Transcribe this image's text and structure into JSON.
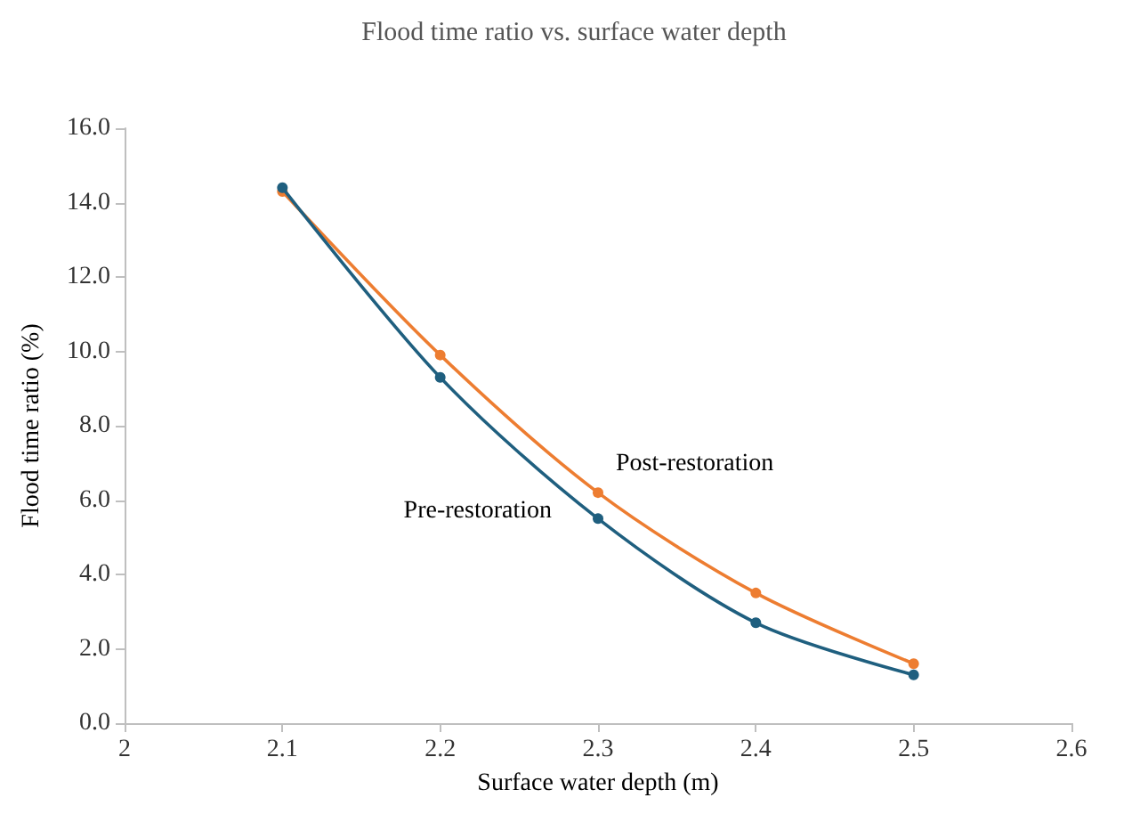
{
  "chart_data": {
    "type": "line",
    "title": "Flood time ratio vs. surface water depth",
    "xlabel": "Surface water depth (m)",
    "ylabel": "Flood time ratio (%)",
    "x": [
      2.1,
      2.2,
      2.3,
      2.4,
      2.5
    ],
    "series": [
      {
        "name": "Pre-restoration",
        "color": "#1f5f7f",
        "values": [
          14.4,
          9.3,
          5.5,
          2.7,
          1.3
        ]
      },
      {
        "name": "Post-restoration",
        "color": "#ed7d31",
        "values": [
          14.3,
          9.9,
          6.2,
          3.5,
          1.6
        ]
      }
    ],
    "xlim": [
      2,
      2.6
    ],
    "xticks": [
      2,
      2.1,
      2.2,
      2.3,
      2.4,
      2.5,
      2.6
    ],
    "ylim": [
      0,
      16
    ],
    "yticks": [
      {
        "value": 0,
        "label": "0.0"
      },
      {
        "value": 2,
        "label": "2.0"
      },
      {
        "value": 4,
        "label": "4.0"
      },
      {
        "value": 6,
        "label": "6.0"
      },
      {
        "value": 8,
        "label": "8.0"
      },
      {
        "value": 10,
        "label": "10.0"
      },
      {
        "value": 12,
        "label": "12.0"
      },
      {
        "value": 14,
        "label": "14.0"
      },
      {
        "value": 16,
        "label": "16.0"
      }
    ],
    "grid": false,
    "legend": false,
    "marker": "circle",
    "line_style": "solid"
  }
}
